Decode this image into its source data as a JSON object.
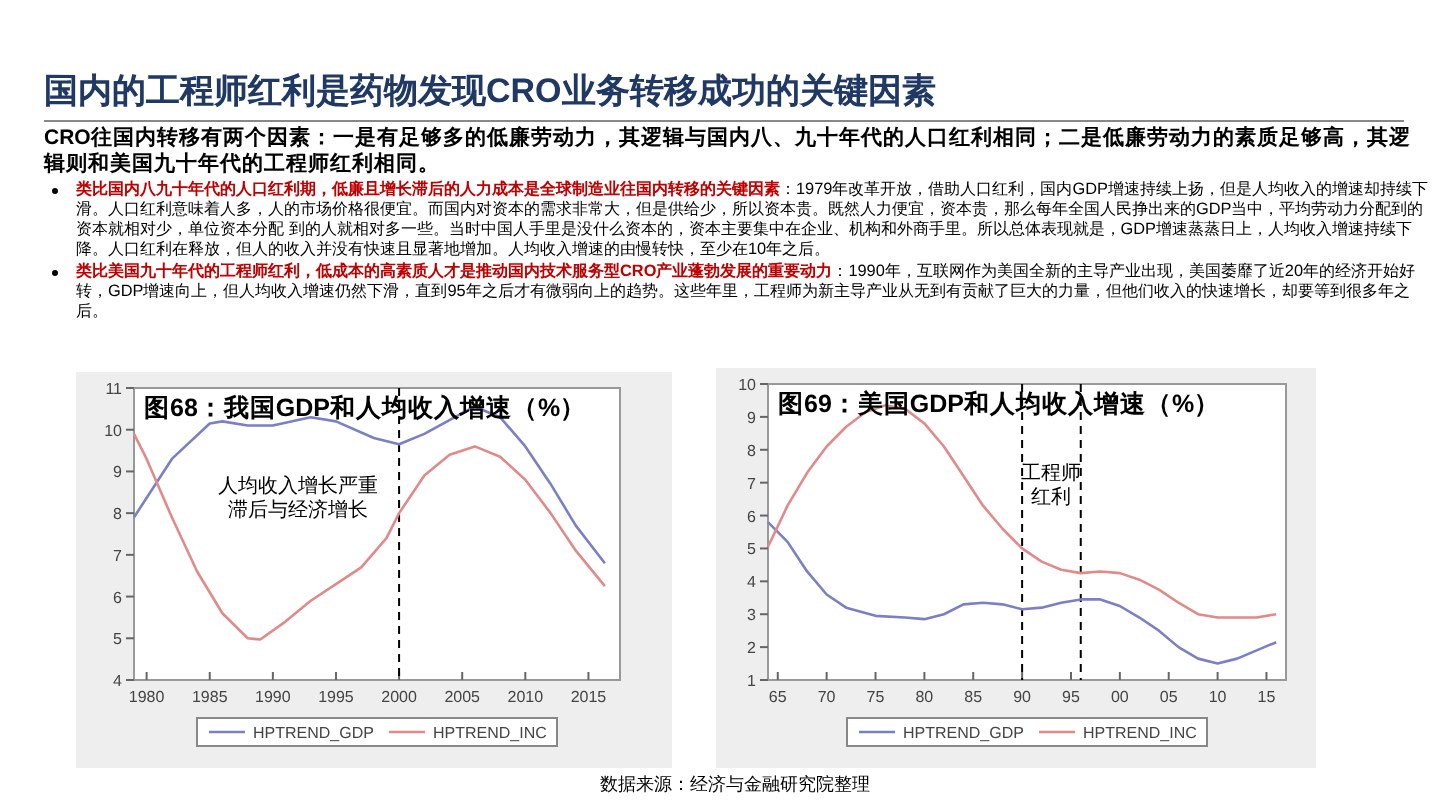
{
  "chart_data": [
    {
      "type": "other",
      "title": "国内的工程师红利是药物发现CRO业务转移成功的关键因素",
      "subtitle": "CRO往国内转移有两个因素：一是有足够多的低廉劳动力，其逻辑与国内八、九十年代的人口红利相同；二是低廉劳动力的素质足够高，其逻辑则和美国九十年代的工程师红利相同。",
      "annotations": [
        "**类比国内八九十年代的人口红利期，低廉且增长滞后的人力成本是全球制造业往国内转移的关键因素**：1979年改革开放，借助人口红利，国内GDP增速持续上扬，但是人均收入的增速却持续下滑。人口红利意味着人多，人的市场价格很便宜。而国内对资本的需求非常大，但是供给少，所以资本贵。既然人力便宜，资本贵，那么每年全国人民挣出来的GDP当中，平均劳动力分配到的资本就相对少，单位资本分配 到的人就相对多一些。当时中国人手里是没什么资本的，资本主要集中在企业、机构和外商手里。所以总体表现就是，GDP增速蒸蒸日上，人均收入增速持续下降。人口红利在释放，但人的收入并没有快速且显著地增加。人均收入增速的由慢转快，至少在10年之后。",
        "**类比美国九十年代的工程师红利，低成本的高素质人才是推动国内技术服务型CRO产业蓬勃发展的重要动力**：1990年，互联网作为美国全新的主导产业出现，美国萎靡了近20年的经济开始好转，GDP增速向上，但人均收入增速仍然下滑，直到95年之后才有微弱向上的趋势。这些年里，工程师为新主导产业从无到有贡献了巨大的力量，但他们收入的快速增长，却要等到很多年之后。",
        "数据来源：经济与金融研究院整理"
      ]
    },
    {
      "type": "line",
      "title": "图68：我国GDP和人均收入增速（%）",
      "xlim": [
        1979,
        2017.5
      ],
      "ylim": [
        4,
        11
      ],
      "xticks": [
        1980,
        1985,
        1990,
        1995,
        2000,
        2005,
        2010,
        2015
      ],
      "yticks": [
        4,
        5,
        6,
        7,
        8,
        9,
        10,
        11
      ],
      "legend": "bottom",
      "annotations": [
        "人均收入增长严重滞后与经济增长"
      ],
      "ref_lines": [
        {
          "axis": "x",
          "value": 2000,
          "color": "#000000",
          "line_style": "dashed"
        }
      ],
      "series": [
        {
          "name": "HPTREND_GDP",
          "color": "#7b7fc4",
          "x": [
            1979,
            1982,
            1985,
            1986,
            1988,
            1990,
            1993,
            1995,
            1998,
            2000,
            2002,
            2005,
            2006,
            2008,
            2010,
            2012,
            2014,
            2016.3
          ],
          "values": [
            7.9,
            9.3,
            10.15,
            10.2,
            10.1,
            10.1,
            10.3,
            10.2,
            9.8,
            9.65,
            9.9,
            10.4,
            10.55,
            10.3,
            9.6,
            8.7,
            7.7,
            6.8
          ]
        },
        {
          "name": "HPTREND_INC",
          "color": "#e08a8a",
          "x": [
            1979,
            1980,
            1982,
            1984,
            1986,
            1988,
            1989,
            1991,
            1993,
            1995,
            1997,
            1999,
            2000,
            2002,
            2004,
            2006,
            2008,
            2010,
            2012,
            2014,
            2016.3
          ],
          "values": [
            9.9,
            9.3,
            7.9,
            6.6,
            5.6,
            5.0,
            4.97,
            5.4,
            5.9,
            6.3,
            6.7,
            7.4,
            8.0,
            8.9,
            9.4,
            9.6,
            9.35,
            8.8,
            8.0,
            7.1,
            6.25
          ]
        }
      ]
    },
    {
      "type": "line",
      "title": "图69：美国GDP和人均收入增速（%）",
      "xlim": [
        1964,
        2017
      ],
      "ylim": [
        1,
        10
      ],
      "xticks": [
        {
          "value": 1965,
          "label": "65"
        },
        {
          "value": 1970,
          "label": "70"
        },
        {
          "value": 1975,
          "label": "75"
        },
        {
          "value": 1980,
          "label": "80"
        },
        {
          "value": 1985,
          "label": "85"
        },
        {
          "value": 1990,
          "label": "90"
        },
        {
          "value": 1995,
          "label": "95"
        },
        {
          "value": 2000,
          "label": "00"
        },
        {
          "value": 2005,
          "label": "05"
        },
        {
          "value": 2010,
          "label": "10"
        },
        {
          "value": 2015,
          "label": "15"
        }
      ],
      "yticks": [
        1,
        2,
        3,
        4,
        5,
        6,
        7,
        8,
        9,
        10
      ],
      "legend": "bottom",
      "annotations": [
        "工程师红利"
      ],
      "ref_lines": [
        {
          "axis": "x",
          "value": 1990,
          "color": "#000000",
          "line_style": "dashed"
        },
        {
          "axis": "x",
          "value": 1996,
          "color": "#000000",
          "line_style": "dashed"
        }
      ],
      "series": [
        {
          "name": "HPTREND_GDP",
          "color": "#7b7fc4",
          "x": [
            1964,
            1966,
            1968,
            1970,
            1972,
            1975,
            1978,
            1980,
            1982,
            1984,
            1986,
            1988,
            1990,
            1992,
            1994,
            1996,
            1998,
            2000,
            2002,
            2004,
            2006,
            2008,
            2010,
            2012,
            2014,
            2016
          ],
          "values": [
            5.8,
            5.2,
            4.3,
            3.6,
            3.2,
            2.95,
            2.9,
            2.85,
            3.0,
            3.3,
            3.35,
            3.3,
            3.15,
            3.2,
            3.35,
            3.45,
            3.45,
            3.25,
            2.9,
            2.5,
            2.0,
            1.65,
            1.5,
            1.65,
            1.9,
            2.15
          ]
        },
        {
          "name": "HPTREND_INC",
          "color": "#e08a8a",
          "x": [
            1964,
            1966,
            1968,
            1970,
            1972,
            1974,
            1976,
            1978,
            1980,
            1982,
            1984,
            1986,
            1988,
            1990,
            1992,
            1994,
            1996,
            1998,
            2000,
            2002,
            2004,
            2006,
            2008,
            2010,
            2012,
            2014,
            2016
          ],
          "values": [
            5.05,
            6.3,
            7.3,
            8.1,
            8.7,
            9.15,
            9.35,
            9.25,
            8.8,
            8.1,
            7.2,
            6.3,
            5.6,
            5.0,
            4.6,
            4.35,
            4.25,
            4.3,
            4.25,
            4.05,
            3.75,
            3.35,
            3.0,
            2.9,
            2.9,
            2.9,
            3.0
          ]
        }
      ]
    }
  ]
}
